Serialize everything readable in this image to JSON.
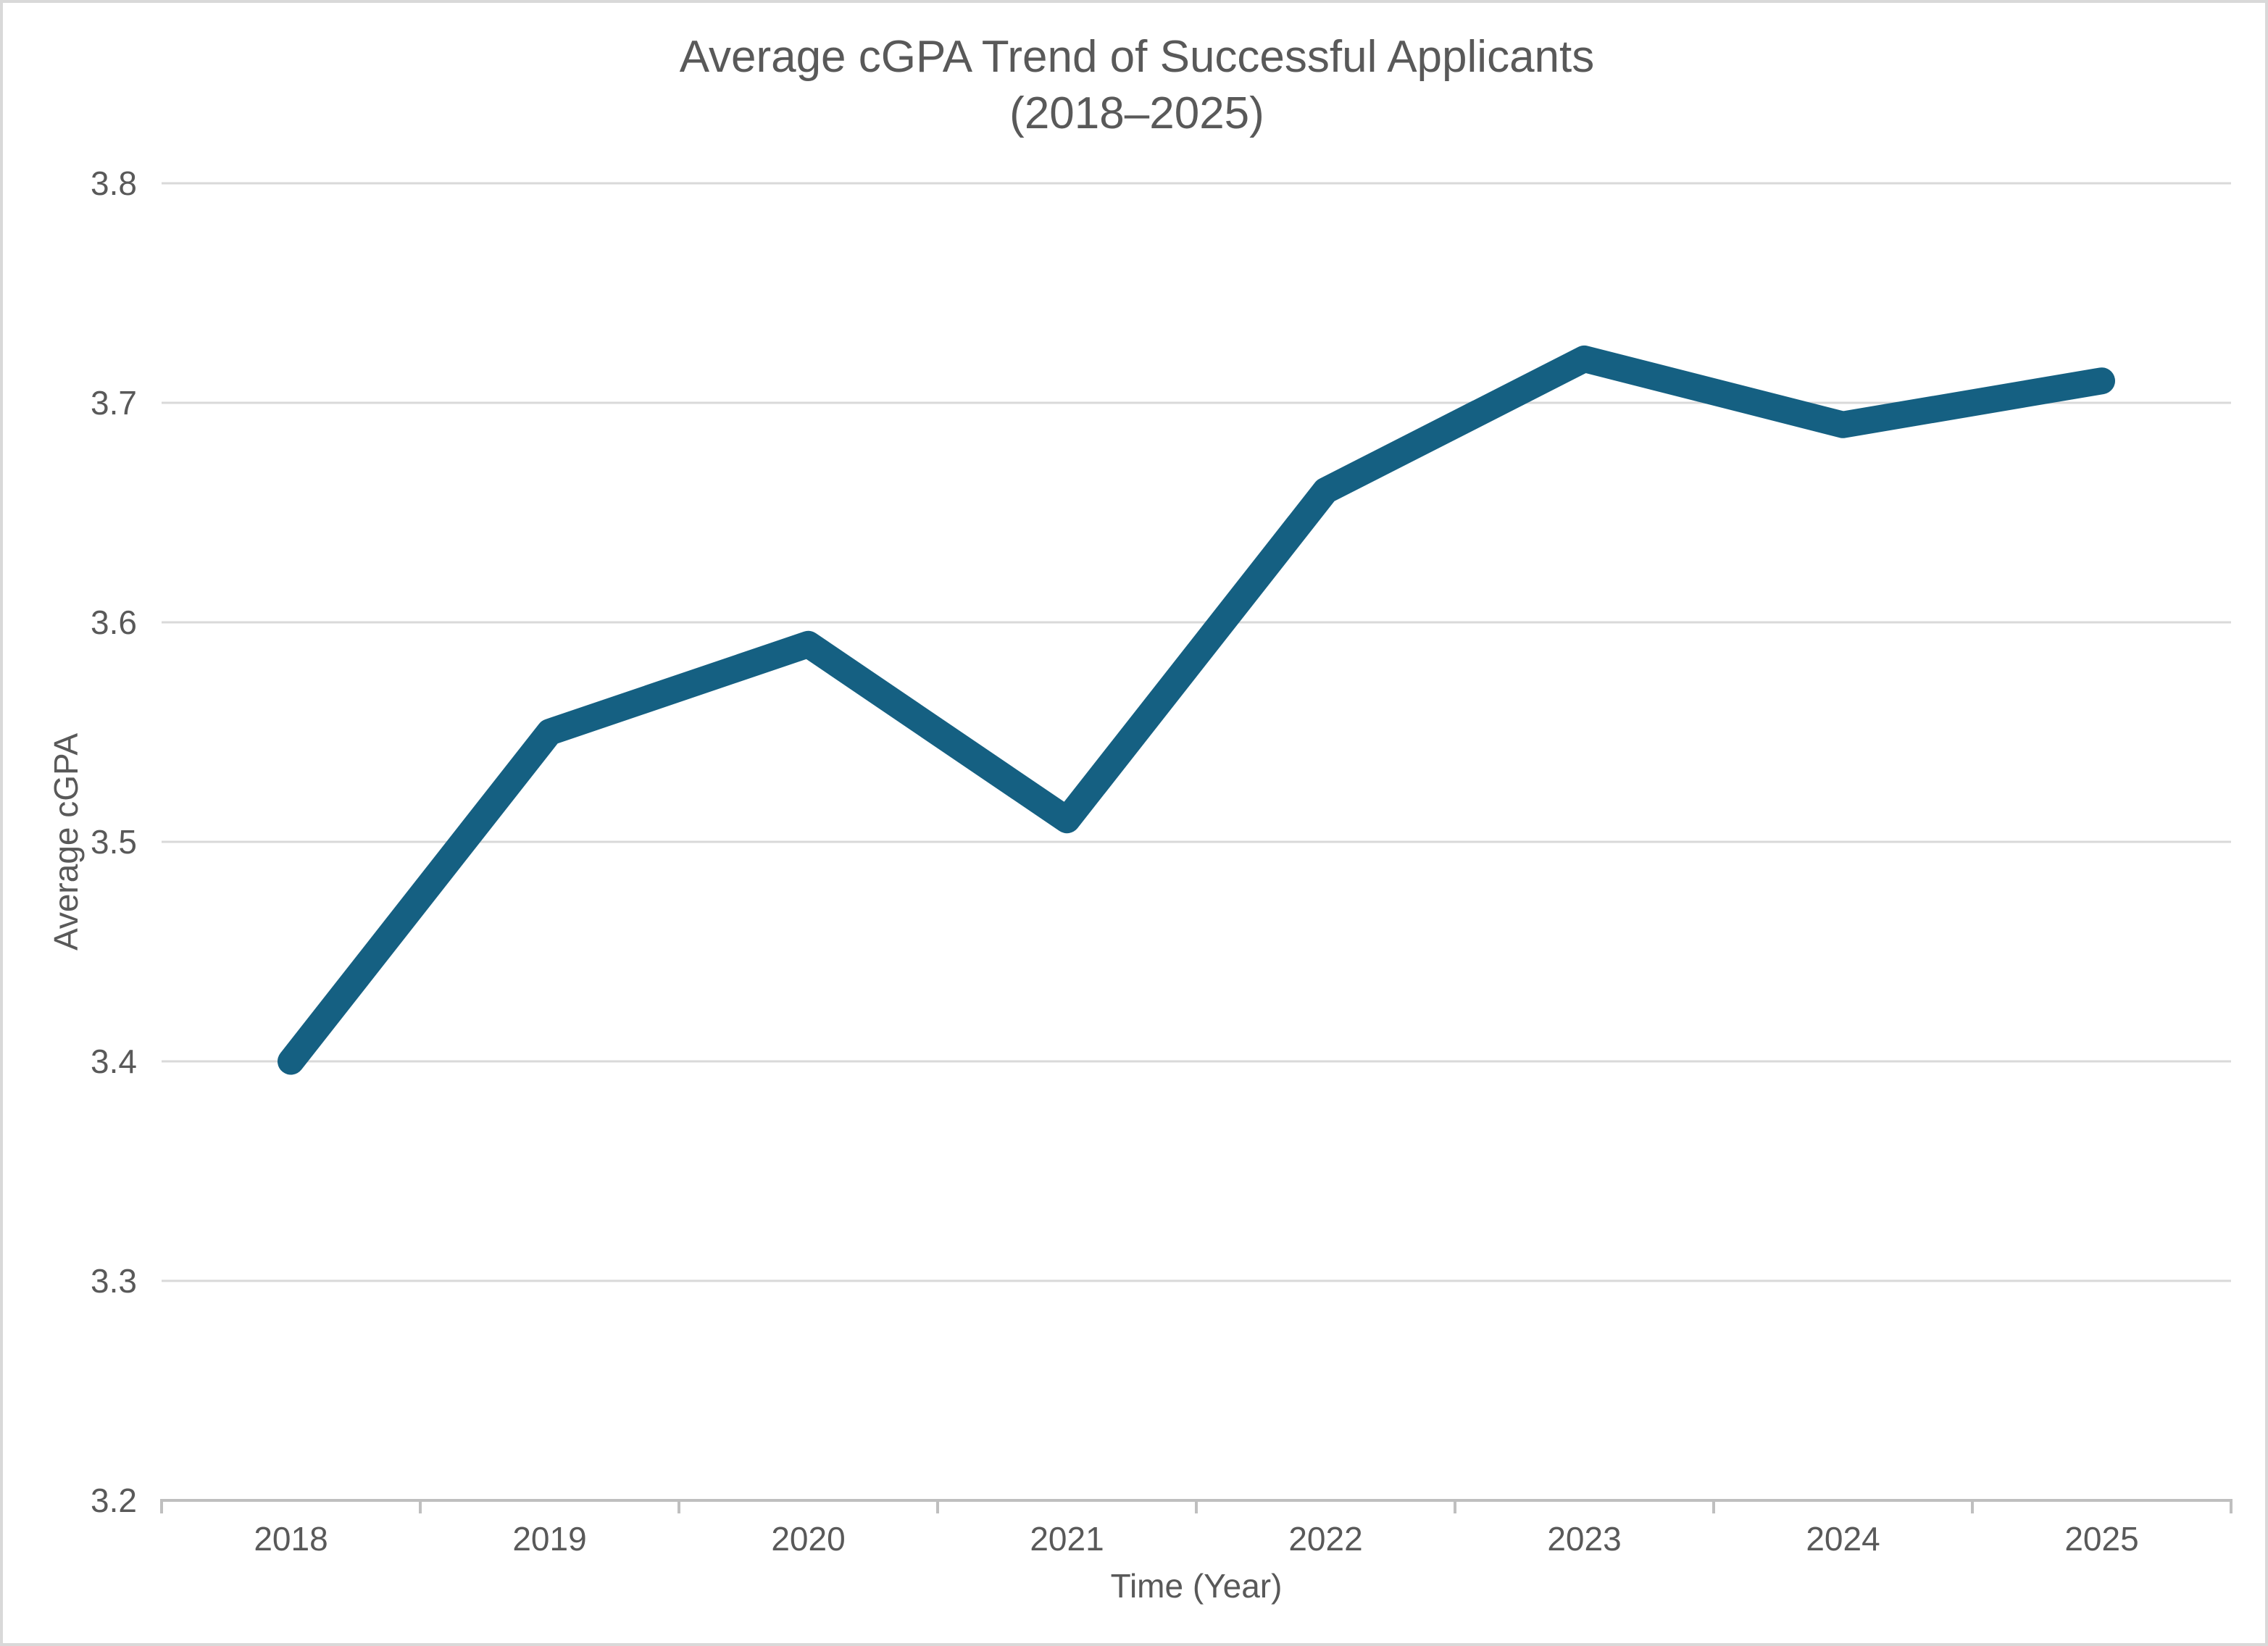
{
  "title": {
    "line1": "Average cGPA Trend of Successful Applicants",
    "line2": "(2018–2025)"
  },
  "chart_data": {
    "type": "line",
    "categories": [
      "2018",
      "2019",
      "2020",
      "2021",
      "2022",
      "2023",
      "2024",
      "2025"
    ],
    "series": [
      {
        "name": "Average cGPA",
        "values": [
          3.4,
          3.55,
          3.59,
          3.51,
          3.66,
          3.72,
          3.69,
          3.71
        ]
      }
    ],
    "title": "Average cGPA Trend of Successful Applicants (2018–2025)",
    "xlabel": "Time (Year)",
    "ylabel": "Average cGPA",
    "ylim": [
      3.2,
      3.8
    ],
    "ytick_labels": [
      "3.8",
      "3.7",
      "3.6",
      "3.5",
      "3.4",
      "3.3",
      "3.2"
    ],
    "grid": "horizontal",
    "legend": "none",
    "markers": "none"
  },
  "colors": {
    "line": "#156082",
    "gridline": "#D9D9D9",
    "axis_line": "#BFBFBF",
    "text": "#595959",
    "frame_border": "#D9D9D9",
    "background": "#FFFFFF"
  }
}
